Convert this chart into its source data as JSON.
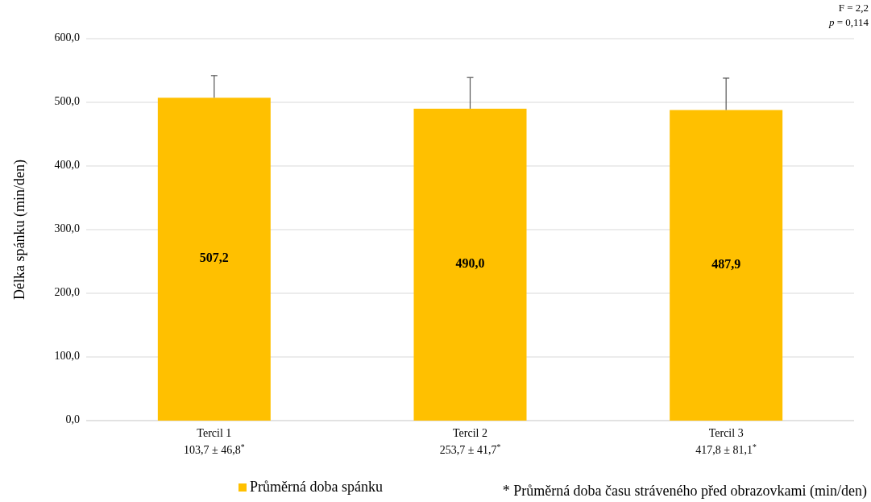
{
  "chart_data": {
    "type": "bar",
    "ylabel": "Délka spánku (min/den)",
    "categories": [
      "Tercil 1\n103,7 ± 46,8$^{*}$",
      "Tercil 2\n253,7 ± 41,7$^{*}$",
      "Tercil 3\n417,8 ± 81,1$^{*}$"
    ],
    "series": [
      {
        "name": "Průměrná doba spánku",
        "color": "#ffc000",
        "values": [
          507.2,
          490.0,
          487.9
        ],
        "errors": [
          [
            507.2,
            542
          ],
          [
            490.0,
            539
          ],
          [
            487.9,
            538
          ]
        ],
        "value_labels": [
          "507,2",
          "490,0",
          "487,9"
        ]
      }
    ],
    "ylim": [
      0,
      600
    ],
    "yticks": [
      {
        "value": 0,
        "label": "0,0"
      },
      {
        "value": 100,
        "label": "100,0"
      },
      {
        "value": 200,
        "label": "200,0"
      },
      {
        "value": 300,
        "label": "300,0"
      },
      {
        "value": 400,
        "label": "400,0"
      },
      {
        "value": 500,
        "label": "500,0"
      },
      {
        "value": 600,
        "label": "600,0"
      }
    ],
    "grid": "y",
    "legend": "bottom",
    "annotations": [
      "F = 2,2",
      "p = 0,114",
      "* Průměrná doba času stráveného před obrazovkami (min/den)"
    ]
  }
}
